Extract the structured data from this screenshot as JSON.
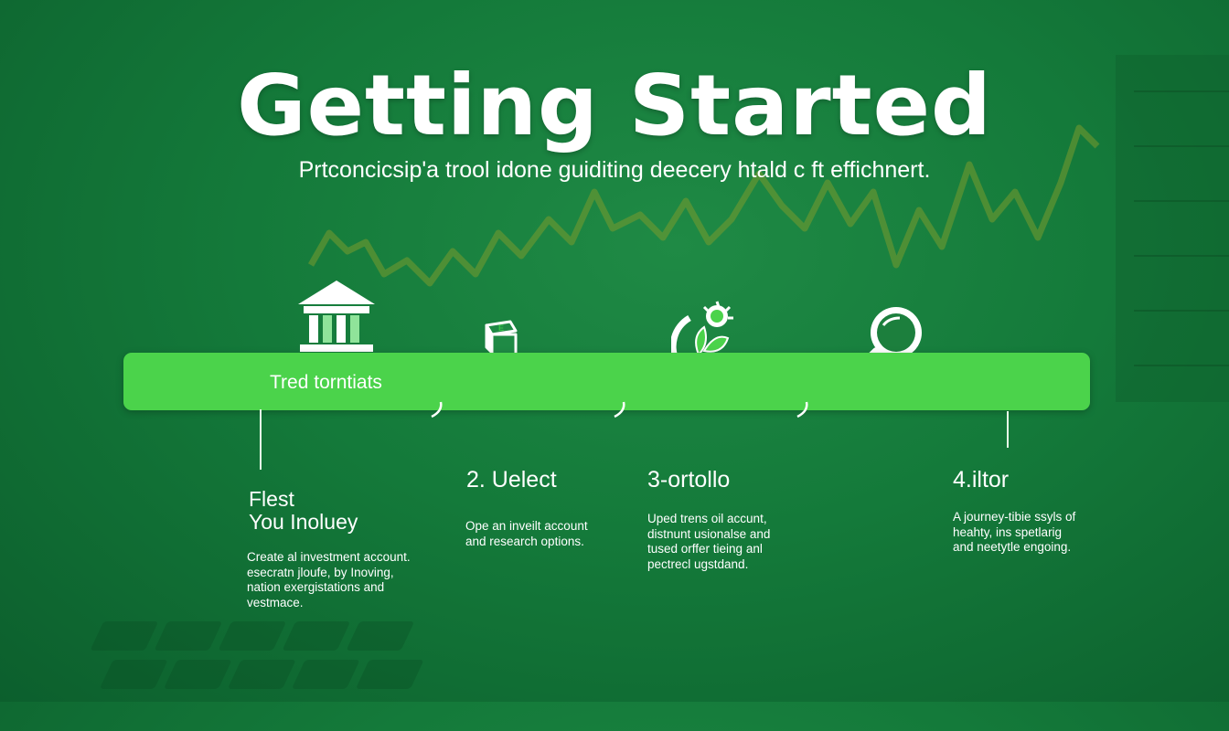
{
  "header": {
    "title": "Getting Started",
    "subtitle": "Prtconcicsip'a trool idone guiditing deecery htald c ft effichnert."
  },
  "bar": {
    "label": "Tred torntiats"
  },
  "steps": [
    {
      "icon": "bank-icon",
      "title_line1": "Flest",
      "title_line2": "You Inoluey",
      "desc": [
        "Create al investment account.",
        "esecratn jloufe, by Inoving,",
        "nation exergistations and",
        "vestmace."
      ]
    },
    {
      "icon": "boxes-icon",
      "title": "2. Uelect",
      "desc": [
        "Ope an inveilt account",
        "and research options."
      ]
    },
    {
      "icon": "plant-hand-icon",
      "title": "3-ortollo",
      "desc": [
        "Uped trens oil accunt,",
        "distnunt usionalse and",
        "tused orffer tieing anl",
        "pectrecl ugstdand."
      ]
    },
    {
      "icon": "magnifier-icon",
      "title": "4.iltor",
      "desc": [
        "A journey-tibie ssyls of",
        "heahty, ins spetlarig",
        "and neetytle engoing."
      ]
    }
  ],
  "colors": {
    "background": "#147a3a",
    "bar": "#4bd34b",
    "text": "#ffffff",
    "chart_line": "#6b8f2a"
  }
}
